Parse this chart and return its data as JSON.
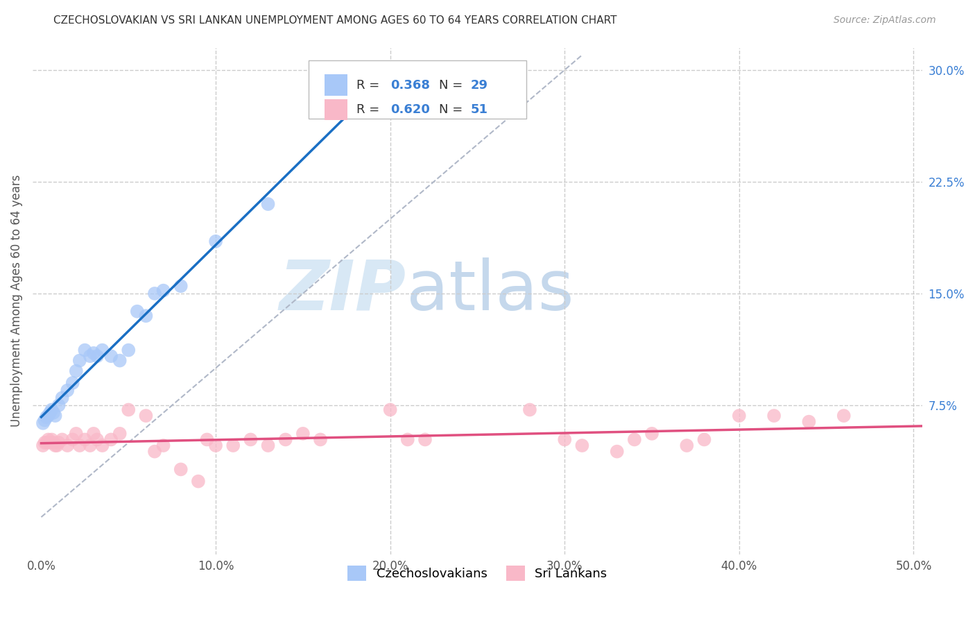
{
  "title": "CZECHOSLOVAKIAN VS SRI LANKAN UNEMPLOYMENT AMONG AGES 60 TO 64 YEARS CORRELATION CHART",
  "source": "Source: ZipAtlas.com",
  "ylabel": "Unemployment Among Ages 60 to 64 years",
  "xlabel_ticks": [
    "0.0%",
    "10.0%",
    "20.0%",
    "30.0%",
    "40.0%",
    "50.0%"
  ],
  "xlabel_vals": [
    0.0,
    0.1,
    0.2,
    0.3,
    0.4,
    0.5
  ],
  "ylabel_ticks_right": [
    "30.0%",
    "22.5%",
    "15.0%",
    "7.5%"
  ],
  "ylabel_vals_right": [
    0.3,
    0.225,
    0.15,
    0.075
  ],
  "xlim": [
    -0.005,
    0.505
  ],
  "ylim": [
    -0.025,
    0.315
  ],
  "czech_R": "0.368",
  "czech_N": "29",
  "srilanka_R": "0.620",
  "srilanka_N": "51",
  "czech_color": "#a8c8f8",
  "czech_line_color": "#1a6fc4",
  "srilanka_color": "#f9b8c8",
  "srilanka_line_color": "#e05080",
  "diagonal_color": "#b0b8c8",
  "background_color": "#ffffff",
  "grid_color": "#cccccc",
  "czech_x": [
    0.001,
    0.002,
    0.003,
    0.004,
    0.005,
    0.006,
    0.007,
    0.008,
    0.01,
    0.012,
    0.015,
    0.018,
    0.02,
    0.022,
    0.025,
    0.028,
    0.03,
    0.032,
    0.035,
    0.04,
    0.045,
    0.05,
    0.055,
    0.06,
    0.065,
    0.07,
    0.08,
    0.1,
    0.13
  ],
  "czech_y": [
    0.063,
    0.065,
    0.067,
    0.068,
    0.07,
    0.072,
    0.07,
    0.068,
    0.075,
    0.08,
    0.085,
    0.09,
    0.098,
    0.105,
    0.112,
    0.108,
    0.11,
    0.108,
    0.112,
    0.108,
    0.105,
    0.112,
    0.138,
    0.135,
    0.15,
    0.152,
    0.155,
    0.185,
    0.21
  ],
  "srilanka_x": [
    0.001,
    0.002,
    0.003,
    0.004,
    0.005,
    0.006,
    0.007,
    0.008,
    0.009,
    0.01,
    0.012,
    0.015,
    0.018,
    0.02,
    0.022,
    0.025,
    0.028,
    0.03,
    0.032,
    0.035,
    0.04,
    0.045,
    0.05,
    0.06,
    0.065,
    0.07,
    0.08,
    0.09,
    0.095,
    0.1,
    0.11,
    0.12,
    0.13,
    0.14,
    0.15,
    0.16,
    0.2,
    0.21,
    0.22,
    0.28,
    0.3,
    0.31,
    0.33,
    0.34,
    0.35,
    0.37,
    0.38,
    0.4,
    0.42,
    0.44,
    0.46
  ],
  "srilanka_y": [
    0.048,
    0.05,
    0.05,
    0.052,
    0.05,
    0.052,
    0.05,
    0.048,
    0.048,
    0.05,
    0.052,
    0.048,
    0.052,
    0.056,
    0.048,
    0.052,
    0.048,
    0.056,
    0.052,
    0.048,
    0.052,
    0.056,
    0.072,
    0.068,
    0.044,
    0.048,
    0.032,
    0.024,
    0.052,
    0.048,
    0.048,
    0.052,
    0.048,
    0.052,
    0.056,
    0.052,
    0.072,
    0.052,
    0.052,
    0.072,
    0.052,
    0.048,
    0.044,
    0.052,
    0.056,
    0.048,
    0.052,
    0.068,
    0.068,
    0.064,
    0.068
  ],
  "watermark_zip": "ZIP",
  "watermark_atlas": "atlas",
  "watermark_color_zip": "#d8e8f5",
  "watermark_color_atlas": "#c5d8ec",
  "axis_label_color": "#3a7fd4",
  "legend_r_color": "#333333",
  "legend_n_color": "#3a7fd4"
}
